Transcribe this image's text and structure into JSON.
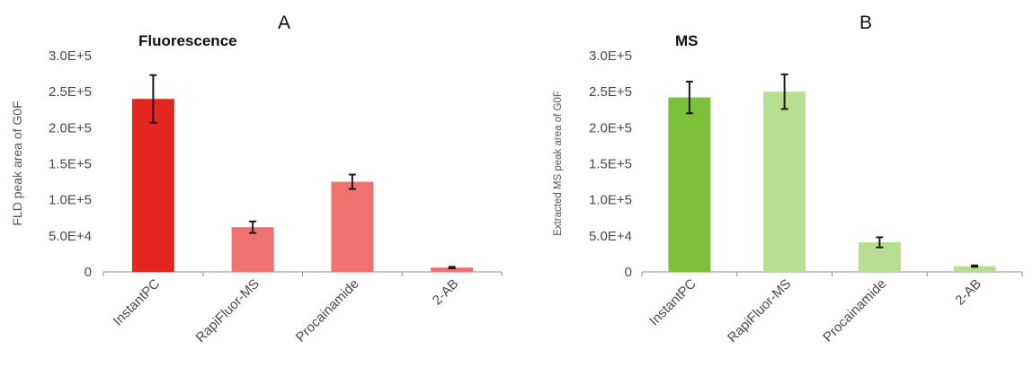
{
  "chart_data": [
    {
      "type": "bar",
      "panel_label": "A",
      "title": "Fluorescence",
      "xlabel": "",
      "ylabel": "FLD peak area of G0F",
      "categories": [
        "InstantPC",
        "RapiFluor-MS",
        "Procainamide",
        "2-AB"
      ],
      "values": [
        240000,
        62000,
        125000,
        6000
      ],
      "error": [
        33000,
        8000,
        10000,
        1000
      ],
      "bar_colors": [
        "#e52620",
        "#ef7170",
        "#ef7170",
        "#ef7170"
      ],
      "yticks": [
        "0",
        "5.0E+4",
        "1.0E+5",
        "1.5E+5",
        "2.0E+5",
        "2.5E+5",
        "3.0E+5"
      ],
      "ylim": [
        0,
        300000
      ],
      "grid": false
    },
    {
      "type": "bar",
      "panel_label": "B",
      "title": "MS",
      "xlabel": "",
      "ylabel": "Extracted MS peak area of G0F",
      "categories": [
        "InstantPC",
        "RapiFluor-MS",
        "Procainamide",
        "2-AB"
      ],
      "values": [
        242000,
        250000,
        41000,
        8000
      ],
      "error": [
        22000,
        24000,
        7000,
        1000
      ],
      "bar_colors": [
        "#7dc13b",
        "#b7de91",
        "#b7de91",
        "#b7de91"
      ],
      "yticks": [
        "0",
        "5.0E+4",
        "1.0E+5",
        "1.5E+5",
        "2.0E+5",
        "2.5E+5",
        "3.0E+5"
      ],
      "ylim": [
        0,
        300000
      ],
      "grid": false
    }
  ]
}
